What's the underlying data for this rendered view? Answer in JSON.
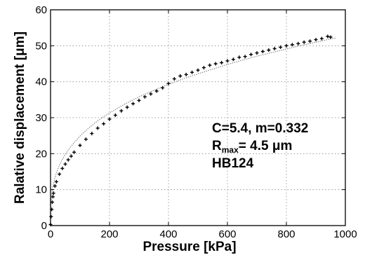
{
  "chart_data": {
    "type": "scatter",
    "title": "",
    "xlabel": "Pressure [kPa]",
    "ylabel": "Ralative displacement [μm]",
    "xlim": [
      0,
      1000
    ],
    "ylim": [
      0,
      60
    ],
    "xticks": [
      0,
      200,
      400,
      600,
      800,
      1000
    ],
    "yticks": [
      0,
      10,
      20,
      30,
      40,
      50,
      60
    ],
    "grid": true,
    "annotation": {
      "line1": "C=5.4, m=0.332",
      "line2_main": "R",
      "line2_sub": "max",
      "line2_rest": "= 4.5 μm",
      "line3": "HB124"
    },
    "series": [
      {
        "kind": "points",
        "color": "#000000",
        "x": [
          0,
          2,
          4,
          6,
          8,
          10,
          15,
          20,
          30,
          40,
          50,
          60,
          70,
          80,
          100,
          120,
          140,
          160,
          180,
          200,
          220,
          240,
          260,
          280,
          300,
          320,
          340,
          360,
          380,
          400,
          420,
          440,
          460,
          480,
          500,
          520,
          540,
          560,
          580,
          600,
          620,
          640,
          660,
          680,
          700,
          720,
          740,
          760,
          780,
          800,
          820,
          840,
          860,
          880,
          900,
          920,
          940,
          950
        ],
        "y": [
          0.3,
          2.5,
          4.5,
          6.5,
          8.0,
          9.0,
          11.0,
          12.2,
          14.3,
          15.9,
          17.1,
          18.3,
          19.3,
          20.4,
          22.3,
          24.0,
          25.6,
          27.1,
          28.3,
          29.6,
          30.7,
          31.9,
          32.9,
          33.9,
          34.8,
          35.8,
          36.6,
          37.4,
          38.3,
          39.5,
          40.8,
          41.6,
          42.0,
          42.6,
          43.2,
          43.9,
          44.6,
          45.0,
          45.3,
          45.8,
          46.2,
          46.8,
          47.0,
          47.6,
          48.0,
          48.4,
          48.8,
          49.2,
          49.6,
          50.0,
          50.3,
          50.6,
          51.0,
          51.3,
          51.7,
          52.0,
          52.6,
          52.4
        ]
      },
      {
        "kind": "fit",
        "color": "#777777",
        "x": [
          1,
          3,
          6,
          10,
          15,
          20,
          30,
          40,
          50,
          60,
          80,
          100,
          125,
          150,
          175,
          200,
          250,
          300,
          350,
          400,
          450,
          500,
          550,
          600,
          650,
          700,
          750,
          800,
          850,
          900,
          950,
          970
        ],
        "y": [
          5.4,
          7.8,
          9.8,
          11.7,
          13.3,
          14.7,
          16.8,
          18.4,
          19.8,
          21.0,
          23.1,
          24.9,
          26.8,
          28.5,
          30.0,
          31.3,
          33.7,
          35.8,
          37.6,
          39.3,
          40.8,
          42.2,
          43.5,
          44.8,
          46.0,
          47.1,
          48.1,
          49.1,
          50.1,
          51.0,
          51.9,
          52.2
        ]
      }
    ]
  }
}
